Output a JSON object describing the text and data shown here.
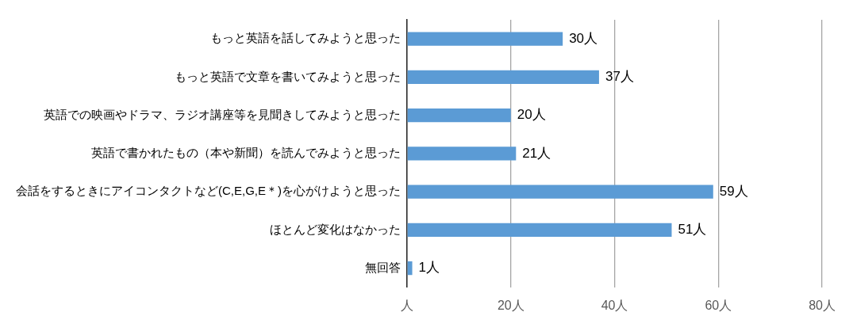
{
  "chart_data": {
    "type": "bar",
    "orientation": "horizontal",
    "categories": [
      "もっと英語を話してみようと思った",
      "もっと英語で文章を書いてみようと思った",
      "英語での映画やドラマ、ラジオ講座等を見聞きしてみようと思った",
      "英語で書かれたもの（本や新聞）を読んでみようと思った",
      "会話をするときにアイコンタクトなど(C,E,G,E＊)を心がけようと思った",
      "ほとんど変化はなかった",
      "無回答"
    ],
    "values": [
      30,
      37,
      20,
      21,
      59,
      51,
      1
    ],
    "value_labels": [
      "30人",
      "37人",
      "20人",
      "21人",
      "59人",
      "51人",
      "1人"
    ],
    "color": "#5b9bd5",
    "xlim": [
      0,
      80
    ],
    "xticks": [
      {
        "value": 0,
        "label": "人"
      },
      {
        "value": 20,
        "label": "20人"
      },
      {
        "value": 40,
        "label": "40人"
      },
      {
        "value": 60,
        "label": "60人"
      },
      {
        "value": 80,
        "label": "80人"
      }
    ],
    "grid": "x",
    "legend": false
  }
}
